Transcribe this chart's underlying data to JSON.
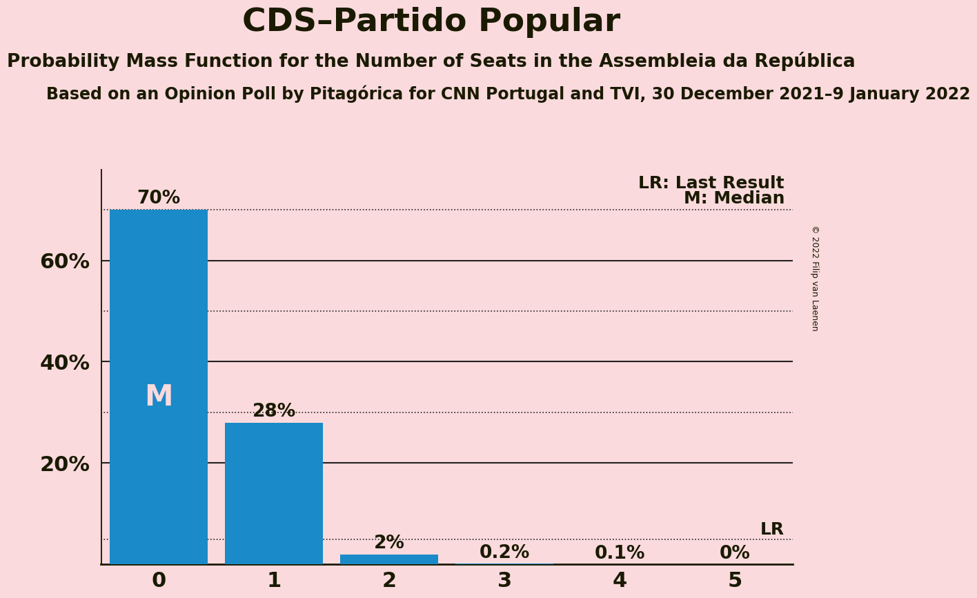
{
  "title": "CDS–Partido Popular",
  "subtitle1": "Probability Mass Function for the Number of Seats in the Assembleia da República",
  "subtitle2": "Based on an Opinion Poll by Pitagórica for CNN Portugal and TVI, 30 December 2021–9 January 2022",
  "copyright": "© 2022 Filip van Laenen",
  "categories": [
    0,
    1,
    2,
    3,
    4,
    5
  ],
  "values": [
    0.7,
    0.28,
    0.02,
    0.002,
    0.001,
    0.0
  ],
  "bar_color": "#1a8ac8",
  "background_color": "#fadadd",
  "bar_labels": [
    "70%",
    "28%",
    "2%",
    "0.2%",
    "0.1%",
    "0%"
  ],
  "median_bar": 0,
  "lr_value": 0.05,
  "lr_label": "LR",
  "legend_lr": "LR: Last Result",
  "legend_m": "M: Median",
  "solid_levels": [
    0.2,
    0.4,
    0.6
  ],
  "dotted_levels": [
    0.3,
    0.5,
    0.7
  ],
  "ytick_positions": [
    0.2,
    0.4,
    0.6
  ],
  "ytick_labels": [
    "20%",
    "40%",
    "60%"
  ],
  "ylim": [
    0,
    0.78
  ],
  "title_fontsize": 34,
  "subtitle1_fontsize": 19,
  "subtitle2_fontsize": 17,
  "bar_label_fontsize": 19,
  "tick_fontsize": 22,
  "legend_fontsize": 18,
  "median_label_color": "#fadadd",
  "text_color": "#1a1a00",
  "dotted_line_color": "#222222",
  "solid_line_color": "#222222"
}
